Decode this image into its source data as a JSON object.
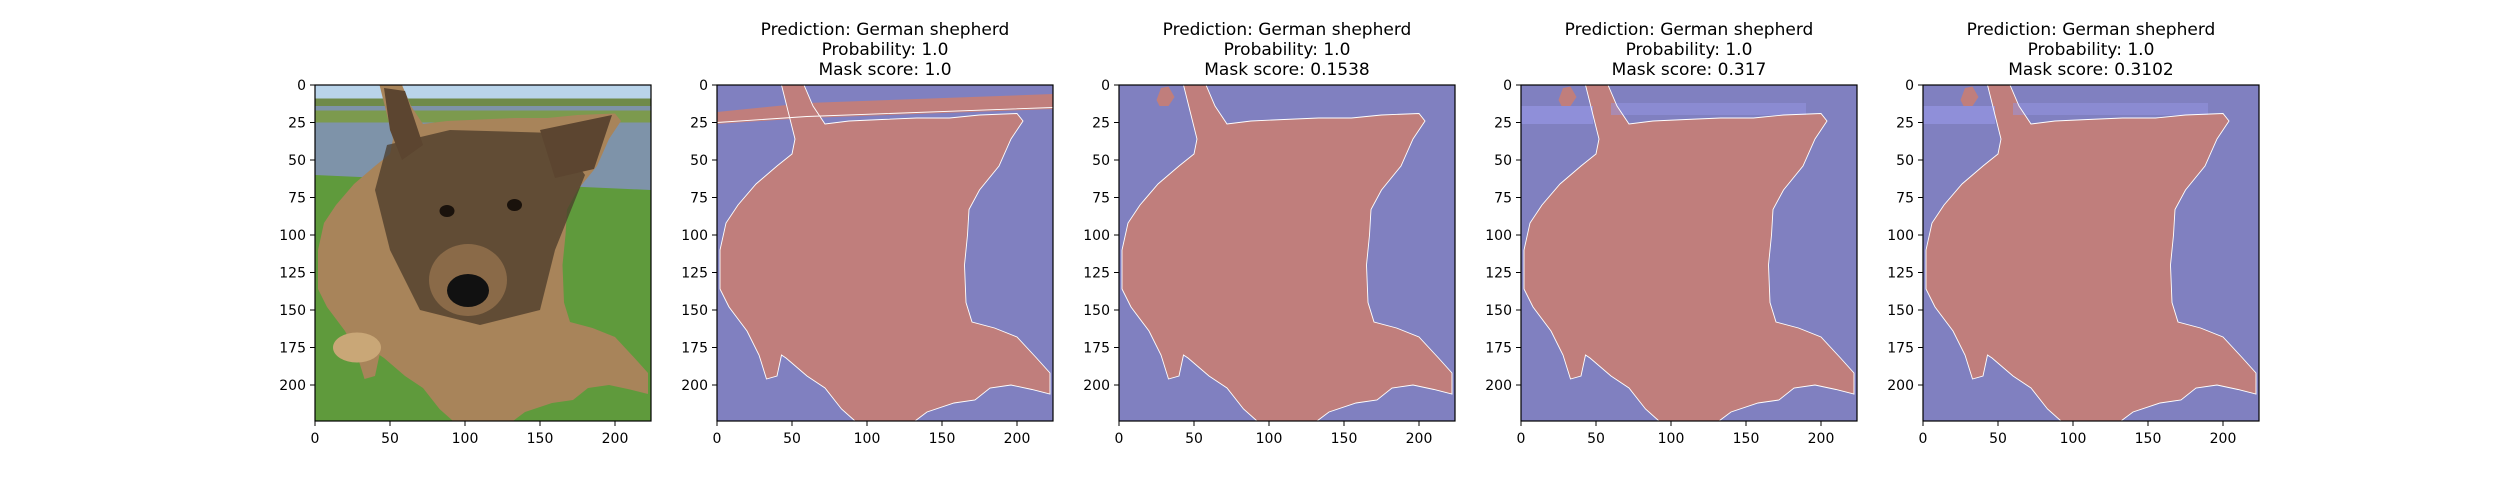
{
  "chart_data": [
    {
      "type": "image",
      "content": "photo",
      "title_lines": [],
      "xticks": [
        0,
        50,
        100,
        150,
        200
      ],
      "yticks": [
        0,
        25,
        50,
        75,
        100,
        125,
        150,
        175,
        200
      ],
      "xlim": [
        0,
        224
      ],
      "ylim": [
        224,
        0
      ]
    },
    {
      "type": "mask",
      "title_lines": [
        "Prediction: German shepherd",
        "Probability: 1.0",
        "Mask score: 1.0"
      ],
      "prediction": "German shepherd",
      "probability": 1.0,
      "mask_score": 1.0,
      "xticks": [
        0,
        50,
        100,
        150,
        200
      ],
      "yticks": [
        0,
        25,
        50,
        75,
        100,
        125,
        150,
        175,
        200
      ],
      "xlim": [
        0,
        224
      ],
      "ylim": [
        224,
        0
      ],
      "variant": 1
    },
    {
      "type": "mask",
      "title_lines": [
        "Prediction: German shepherd",
        "Probability: 1.0",
        "Mask score: 0.1538"
      ],
      "prediction": "German shepherd",
      "probability": 1.0,
      "mask_score": 0.1538,
      "xticks": [
        0,
        50,
        100,
        150,
        200
      ],
      "yticks": [
        0,
        25,
        50,
        75,
        100,
        125,
        150,
        175,
        200
      ],
      "xlim": [
        0,
        224
      ],
      "ylim": [
        224,
        0
      ],
      "variant": 2
    },
    {
      "type": "mask",
      "title_lines": [
        "Prediction: German shepherd",
        "Probability: 1.0",
        "Mask score: 0.317"
      ],
      "prediction": "German shepherd",
      "probability": 1.0,
      "mask_score": 0.317,
      "xticks": [
        0,
        50,
        100,
        150,
        200
      ],
      "yticks": [
        0,
        25,
        50,
        75,
        100,
        125,
        150,
        175,
        200
      ],
      "xlim": [
        0,
        224
      ],
      "ylim": [
        224,
        0
      ],
      "variant": 3
    },
    {
      "type": "mask",
      "title_lines": [
        "Prediction: German shepherd",
        "Probability: 1.0",
        "Mask score: 0.3102"
      ],
      "prediction": "German shepherd",
      "probability": 1.0,
      "mask_score": 0.3102,
      "xticks": [
        0,
        50,
        100,
        150,
        200
      ],
      "yticks": [
        0,
        25,
        50,
        75,
        100,
        125,
        150,
        175,
        200
      ],
      "xlim": [
        0,
        224
      ],
      "ylim": [
        224,
        0
      ],
      "variant": 4
    }
  ],
  "colors": {
    "mask_background": "#8080c0",
    "mask_foreground": "#c07e7c",
    "mask_highlight": "#9696e4",
    "sky": "#b9d4ea",
    "water": "#7e93a9",
    "grass": "#5f9a3c",
    "fur_dark": "#4a3a2a",
    "fur_tan": "#a8845a"
  }
}
